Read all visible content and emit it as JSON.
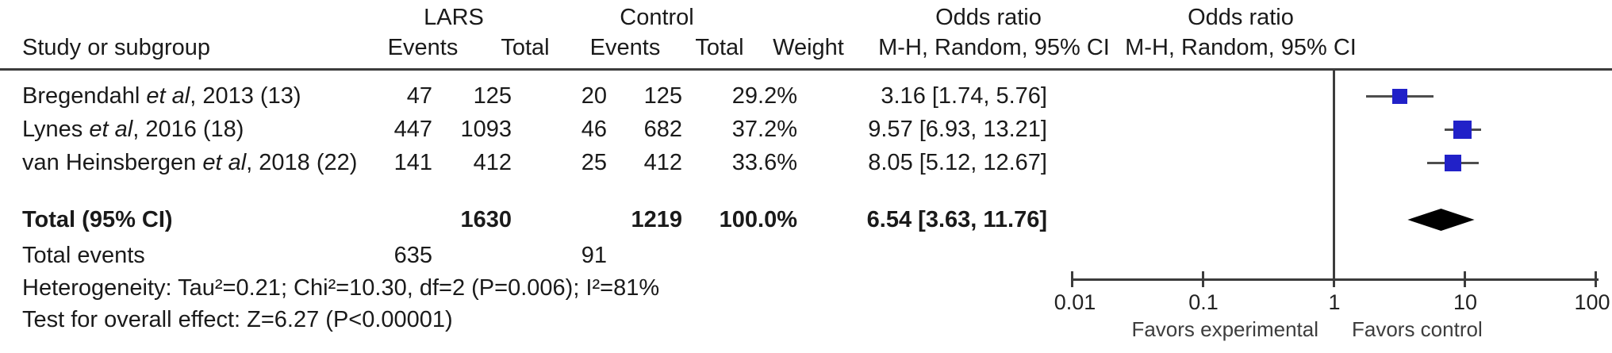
{
  "colors": {
    "square_blue": "#2121c8",
    "ci_line_gray": "#4d4d4d",
    "diamond_black": "#000000",
    "axis_gray": "#3c3c3c"
  },
  "header": {
    "study": "Study or subgroup",
    "lars_group": "LARS",
    "control_group": "Control",
    "events": "Events",
    "total": "Total",
    "weight": "Weight",
    "or_col": {
      "title": "Odds ratio",
      "subtitle": "M-H, Random, 95% CI"
    },
    "plot_col": {
      "title": "Odds ratio",
      "subtitle": "M-H, Random, 95% CI"
    }
  },
  "studies": [
    {
      "name_pre": "Bregendahl ",
      "name_italic": "et al",
      "name_post": ", 2013 (13)",
      "lars_events": "47",
      "lars_total": "125",
      "ctrl_events": "20",
      "ctrl_total": "125",
      "weight": "29.2%",
      "or_ci": "3.16 [1.74, 5.76]"
    },
    {
      "name_pre": "Lynes ",
      "name_italic": "et al",
      "name_post": ", 2016 (18)",
      "lars_events": "447",
      "lars_total": "1093",
      "ctrl_events": "46",
      "ctrl_total": "682",
      "weight": "37.2%",
      "or_ci": "9.57 [6.93, 13.21]"
    },
    {
      "name_pre": "van Heinsbergen ",
      "name_italic": "et al",
      "name_post": ", 2018 (22)",
      "lars_events": "141",
      "lars_total": "412",
      "ctrl_events": "25",
      "ctrl_total": "412",
      "weight": "33.6%",
      "or_ci": "8.05 [5.12, 12.67]"
    }
  ],
  "total_row": {
    "label": "Total (95% CI)",
    "lars_total": "1630",
    "ctrl_total": "1219",
    "weight": "100.0%",
    "or_ci": "6.54 [3.63, 11.76]"
  },
  "total_events": {
    "label": "Total events",
    "lars": "635",
    "ctrl": "91"
  },
  "footnotes": {
    "heterogeneity": "Heterogeneity: Tau²=0.21; Chi²=10.30, df=2 (P=0.006); I²=81%",
    "overall_effect": "Test for overall effect: Z=6.27 (P<0.00001)"
  },
  "axis": {
    "tick_labels": [
      "0.01",
      "0.1",
      "1",
      "10",
      "100"
    ],
    "favors_left": "Favors experimental",
    "favors_right": "Favors control"
  },
  "chart_data": {
    "type": "scatter",
    "subtype": "forest_plot_meta_analysis",
    "title": "Odds ratio — M-H, Random, 95% CI",
    "x_scale": "log10",
    "x_range": [
      0.01,
      100
    ],
    "x_ticks": [
      0.01,
      0.1,
      1,
      10,
      100
    ],
    "reference_line": 1,
    "favors": [
      "Favors experimental",
      "Favors control"
    ],
    "series": [
      {
        "name": "Bregendahl et al, 2013 (13)",
        "or": 3.16,
        "ci": [
          1.74,
          5.76
        ],
        "weight_pct": 29.2,
        "lars_events": 47,
        "lars_total": 125,
        "ctrl_events": 20,
        "ctrl_total": 125
      },
      {
        "name": "Lynes et al, 2016 (18)",
        "or": 9.57,
        "ci": [
          6.93,
          13.21
        ],
        "weight_pct": 37.2,
        "lars_events": 447,
        "lars_total": 1093,
        "ctrl_events": 46,
        "ctrl_total": 682
      },
      {
        "name": "van Heinsbergen et al, 2018 (22)",
        "or": 8.05,
        "ci": [
          5.12,
          12.67
        ],
        "weight_pct": 33.6,
        "lars_events": 141,
        "lars_total": 412,
        "ctrl_events": 25,
        "ctrl_total": 412
      }
    ],
    "total": {
      "name": "Total (95% CI)",
      "or": 6.54,
      "ci": [
        3.63,
        11.76
      ],
      "weight_pct": 100.0,
      "lars_total": 1630,
      "ctrl_total": 1219,
      "lars_events_total": 635,
      "ctrl_events_total": 91
    },
    "heterogeneity": {
      "tau2": 0.21,
      "chi2": 10.3,
      "df": 2,
      "p": 0.006,
      "i2_pct": 81
    },
    "overall_effect": {
      "z": 6.27,
      "p": "<0.00001"
    }
  }
}
